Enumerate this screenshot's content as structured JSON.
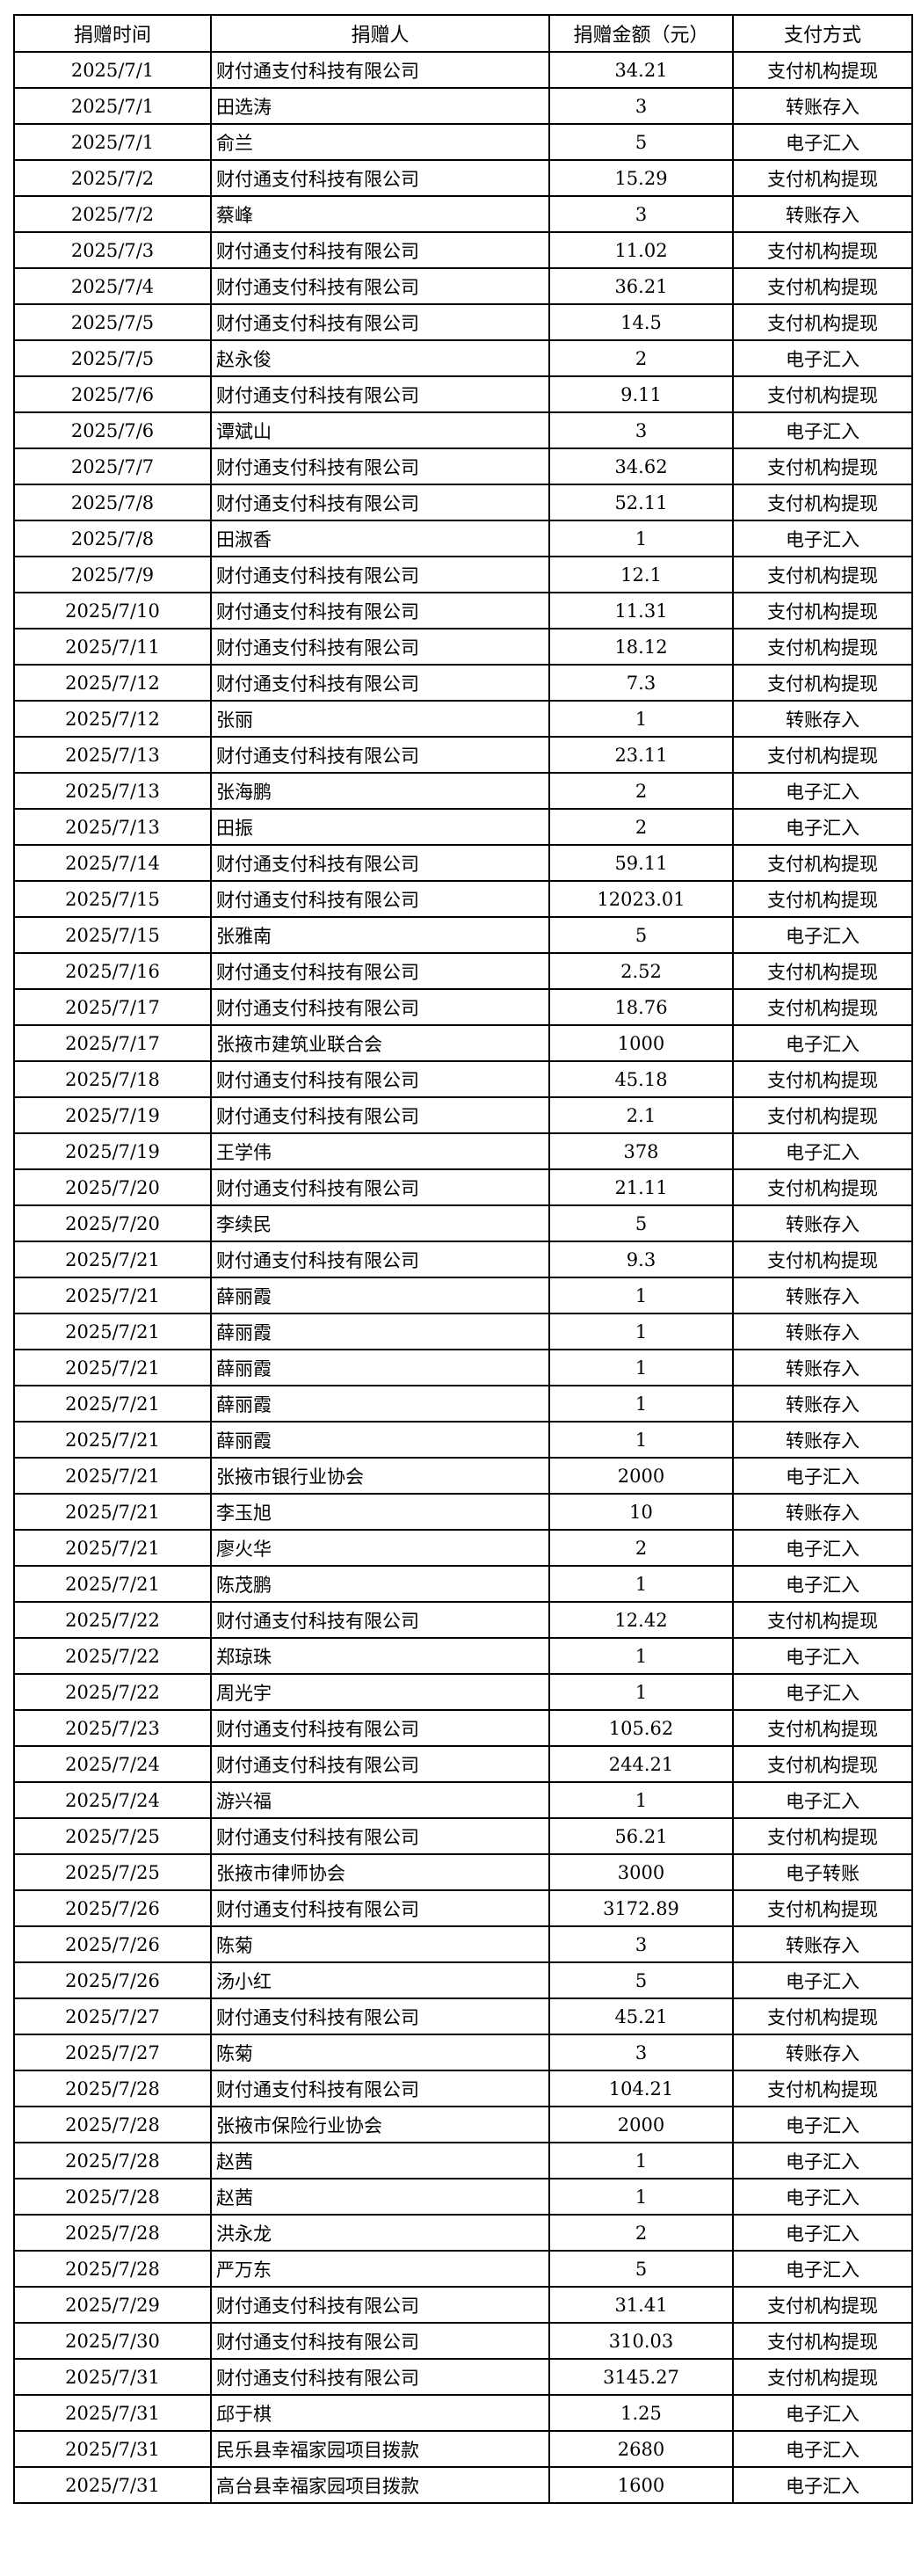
{
  "table": {
    "headers": [
      "捐赠时间",
      "捐赠人",
      "捐赠金额（元）",
      "支付方式"
    ],
    "rows": [
      [
        "2025/7/1",
        "财付通支付科技有限公司",
        "34.21",
        "支付机构提现"
      ],
      [
        "2025/7/1",
        "田选涛",
        "3",
        "转账存入"
      ],
      [
        "2025/7/1",
        "俞兰",
        "5",
        "电子汇入"
      ],
      [
        "2025/7/2",
        "财付通支付科技有限公司",
        "15.29",
        "支付机构提现"
      ],
      [
        "2025/7/2",
        "蔡峰",
        "3",
        "转账存入"
      ],
      [
        "2025/7/3",
        "财付通支付科技有限公司",
        "11.02",
        "支付机构提现"
      ],
      [
        "2025/7/4",
        "财付通支付科技有限公司",
        "36.21",
        "支付机构提现"
      ],
      [
        "2025/7/5",
        "财付通支付科技有限公司",
        "14.5",
        "支付机构提现"
      ],
      [
        "2025/7/5",
        "赵永俊",
        "2",
        "电子汇入"
      ],
      [
        "2025/7/6",
        "财付通支付科技有限公司",
        "9.11",
        "支付机构提现"
      ],
      [
        "2025/7/6",
        "谭斌山",
        "3",
        "电子汇入"
      ],
      [
        "2025/7/7",
        "财付通支付科技有限公司",
        "34.62",
        "支付机构提现"
      ],
      [
        "2025/7/8",
        "财付通支付科技有限公司",
        "52.11",
        "支付机构提现"
      ],
      [
        "2025/7/8",
        "田淑香",
        "1",
        "电子汇入"
      ],
      [
        "2025/7/9",
        "财付通支付科技有限公司",
        "12.1",
        "支付机构提现"
      ],
      [
        "2025/7/10",
        "财付通支付科技有限公司",
        "11.31",
        "支付机构提现"
      ],
      [
        "2025/7/11",
        "财付通支付科技有限公司",
        "18.12",
        "支付机构提现"
      ],
      [
        "2025/7/12",
        "财付通支付科技有限公司",
        "7.3",
        "支付机构提现"
      ],
      [
        "2025/7/12",
        "张丽",
        "1",
        "转账存入"
      ],
      [
        "2025/7/13",
        "财付通支付科技有限公司",
        "23.11",
        "支付机构提现"
      ],
      [
        "2025/7/13",
        "张海鹏",
        "2",
        "电子汇入"
      ],
      [
        "2025/7/13",
        "田振",
        "2",
        "电子汇入"
      ],
      [
        "2025/7/14",
        "财付通支付科技有限公司",
        "59.11",
        "支付机构提现"
      ],
      [
        "2025/7/15",
        "财付通支付科技有限公司",
        "12023.01",
        "支付机构提现"
      ],
      [
        "2025/7/15",
        "张雅南",
        "5",
        "电子汇入"
      ],
      [
        "2025/7/16",
        "财付通支付科技有限公司",
        "2.52",
        "支付机构提现"
      ],
      [
        "2025/7/17",
        "财付通支付科技有限公司",
        "18.76",
        "支付机构提现"
      ],
      [
        "2025/7/17",
        "张掖市建筑业联合会",
        "1000",
        "电子汇入"
      ],
      [
        "2025/7/18",
        "财付通支付科技有限公司",
        "45.18",
        "支付机构提现"
      ],
      [
        "2025/7/19",
        "财付通支付科技有限公司",
        "2.1",
        "支付机构提现"
      ],
      [
        "2025/7/19",
        "王学伟",
        "378",
        "电子汇入"
      ],
      [
        "2025/7/20",
        "财付通支付科技有限公司",
        "21.11",
        "支付机构提现"
      ],
      [
        "2025/7/20",
        "李续民",
        "5",
        "转账存入"
      ],
      [
        "2025/7/21",
        "财付通支付科技有限公司",
        "9.3",
        "支付机构提现"
      ],
      [
        "2025/7/21",
        "薛丽霞",
        "1",
        "转账存入"
      ],
      [
        "2025/7/21",
        "薛丽霞",
        "1",
        "转账存入"
      ],
      [
        "2025/7/21",
        "薛丽霞",
        "1",
        "转账存入"
      ],
      [
        "2025/7/21",
        "薛丽霞",
        "1",
        "转账存入"
      ],
      [
        "2025/7/21",
        "薛丽霞",
        "1",
        "转账存入"
      ],
      [
        "2025/7/21",
        "张掖市银行业协会",
        "2000",
        "电子汇入"
      ],
      [
        "2025/7/21",
        "李玉旭",
        "10",
        "转账存入"
      ],
      [
        "2025/7/21",
        "廖火华",
        "2",
        "电子汇入"
      ],
      [
        "2025/7/21",
        "陈茂鹏",
        "1",
        "电子汇入"
      ],
      [
        "2025/7/22",
        "财付通支付科技有限公司",
        "12.42",
        "支付机构提现"
      ],
      [
        "2025/7/22",
        "郑琼珠",
        "1",
        "电子汇入"
      ],
      [
        "2025/7/22",
        "周光宇",
        "1",
        "电子汇入"
      ],
      [
        "2025/7/23",
        "财付通支付科技有限公司",
        "105.62",
        "支付机构提现"
      ],
      [
        "2025/7/24",
        "财付通支付科技有限公司",
        "244.21",
        "支付机构提现"
      ],
      [
        "2025/7/24",
        "游兴福",
        "1",
        "电子汇入"
      ],
      [
        "2025/7/25",
        "财付通支付科技有限公司",
        "56.21",
        "支付机构提现"
      ],
      [
        "2025/7/25",
        "张掖市律师协会",
        "3000",
        "电子转账"
      ],
      [
        "2025/7/26",
        "财付通支付科技有限公司",
        "3172.89",
        "支付机构提现"
      ],
      [
        "2025/7/26",
        "陈菊",
        "3",
        "转账存入"
      ],
      [
        "2025/7/26",
        "汤小红",
        "5",
        "电子汇入"
      ],
      [
        "2025/7/27",
        "财付通支付科技有限公司",
        "45.21",
        "支付机构提现"
      ],
      [
        "2025/7/27",
        "陈菊",
        "3",
        "转账存入"
      ],
      [
        "2025/7/28",
        "财付通支付科技有限公司",
        "104.21",
        "支付机构提现"
      ],
      [
        "2025/7/28",
        "张掖市保险行业协会",
        "2000",
        "电子汇入"
      ],
      [
        "2025/7/28",
        "赵茜",
        "1",
        "电子汇入"
      ],
      [
        "2025/7/28",
        "赵茜",
        "1",
        "电子汇入"
      ],
      [
        "2025/7/28",
        "洪永龙",
        "2",
        "电子汇入"
      ],
      [
        "2025/7/28",
        "严万东",
        "5",
        "电子汇入"
      ],
      [
        "2025/7/29",
        "财付通支付科技有限公司",
        "31.41",
        "支付机构提现"
      ],
      [
        "2025/7/30",
        "财付通支付科技有限公司",
        "310.03",
        "支付机构提现"
      ],
      [
        "2025/7/31",
        "财付通支付科技有限公司",
        "3145.27",
        "支付机构提现"
      ],
      [
        "2025/7/31",
        "邱于棋",
        "1.25",
        "电子汇入"
      ],
      [
        "2025/7/31",
        "民乐县幸福家园项目拨款",
        "2680",
        "电子汇入"
      ],
      [
        "2025/7/31",
        "高台县幸福家园项目拨款",
        "1600",
        "电子汇入"
      ]
    ]
  }
}
